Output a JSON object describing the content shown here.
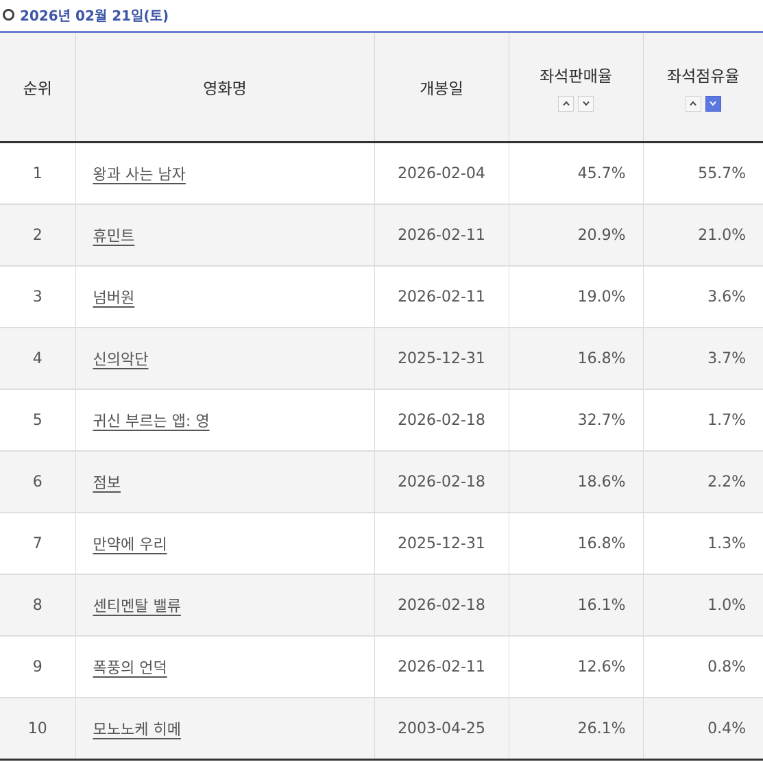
{
  "header": {
    "date": "2026년 02월 21일(토)"
  },
  "columns": {
    "rank": "순위",
    "title": "영화명",
    "release": "개봉일",
    "sales_rate": "좌석판매율",
    "occupancy_rate": "좌석점유율"
  },
  "sort": {
    "sales_rate": {
      "asc_icon": "chevron-up-icon",
      "desc_icon": "chevron-down-icon",
      "active": "none"
    },
    "occupancy_rate": {
      "asc_icon": "chevron-up-icon",
      "desc_icon": "chevron-down-icon",
      "active": "desc"
    }
  },
  "colors": {
    "accent": "#3d56a6",
    "active_sort": "#5b78e0"
  },
  "rows": [
    {
      "rank": "1",
      "title": "왕과 사는 남자",
      "release": "2026-02-04",
      "sales_rate": "45.7%",
      "occupancy_rate": "55.7%"
    },
    {
      "rank": "2",
      "title": "휴민트",
      "release": "2026-02-11",
      "sales_rate": "20.9%",
      "occupancy_rate": "21.0%"
    },
    {
      "rank": "3",
      "title": "넘버원",
      "release": "2026-02-11",
      "sales_rate": "19.0%",
      "occupancy_rate": "3.6%"
    },
    {
      "rank": "4",
      "title": "신의악단",
      "release": "2025-12-31",
      "sales_rate": "16.8%",
      "occupancy_rate": "3.7%"
    },
    {
      "rank": "5",
      "title": "귀신 부르는 앱: 영",
      "release": "2026-02-18",
      "sales_rate": "32.7%",
      "occupancy_rate": "1.7%"
    },
    {
      "rank": "6",
      "title": "점보",
      "release": "2026-02-18",
      "sales_rate": "18.6%",
      "occupancy_rate": "2.2%"
    },
    {
      "rank": "7",
      "title": "만약에 우리",
      "release": "2025-12-31",
      "sales_rate": "16.8%",
      "occupancy_rate": "1.3%"
    },
    {
      "rank": "8",
      "title": "센티멘탈 밸류",
      "release": "2026-02-18",
      "sales_rate": "16.1%",
      "occupancy_rate": "1.0%"
    },
    {
      "rank": "9",
      "title": "폭풍의 언덕",
      "release": "2026-02-11",
      "sales_rate": "12.6%",
      "occupancy_rate": "0.8%"
    },
    {
      "rank": "10",
      "title": "모노노케 히메",
      "release": "2003-04-25",
      "sales_rate": "26.1%",
      "occupancy_rate": "0.4%"
    }
  ]
}
